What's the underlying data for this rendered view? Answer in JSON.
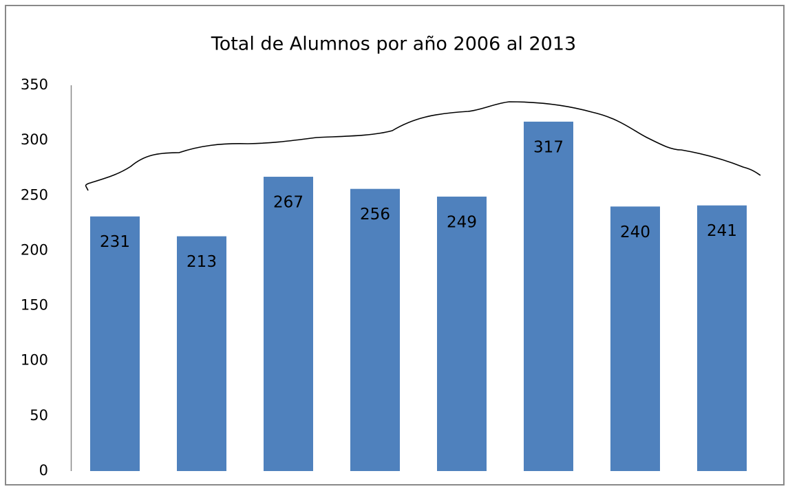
{
  "chart_data": {
    "type": "bar",
    "title": "Total de Alumnos por año 2006 al 2013",
    "categories": [
      null,
      null,
      null,
      null,
      null,
      null,
      null,
      null
    ],
    "values": [
      231,
      213,
      267,
      256,
      249,
      317,
      240,
      241
    ],
    "color": "#4f81bd",
    "ylim": [
      0,
      350
    ],
    "yticks": [
      0,
      50,
      100,
      150,
      200,
      250,
      300,
      350
    ],
    "grid": false
  }
}
